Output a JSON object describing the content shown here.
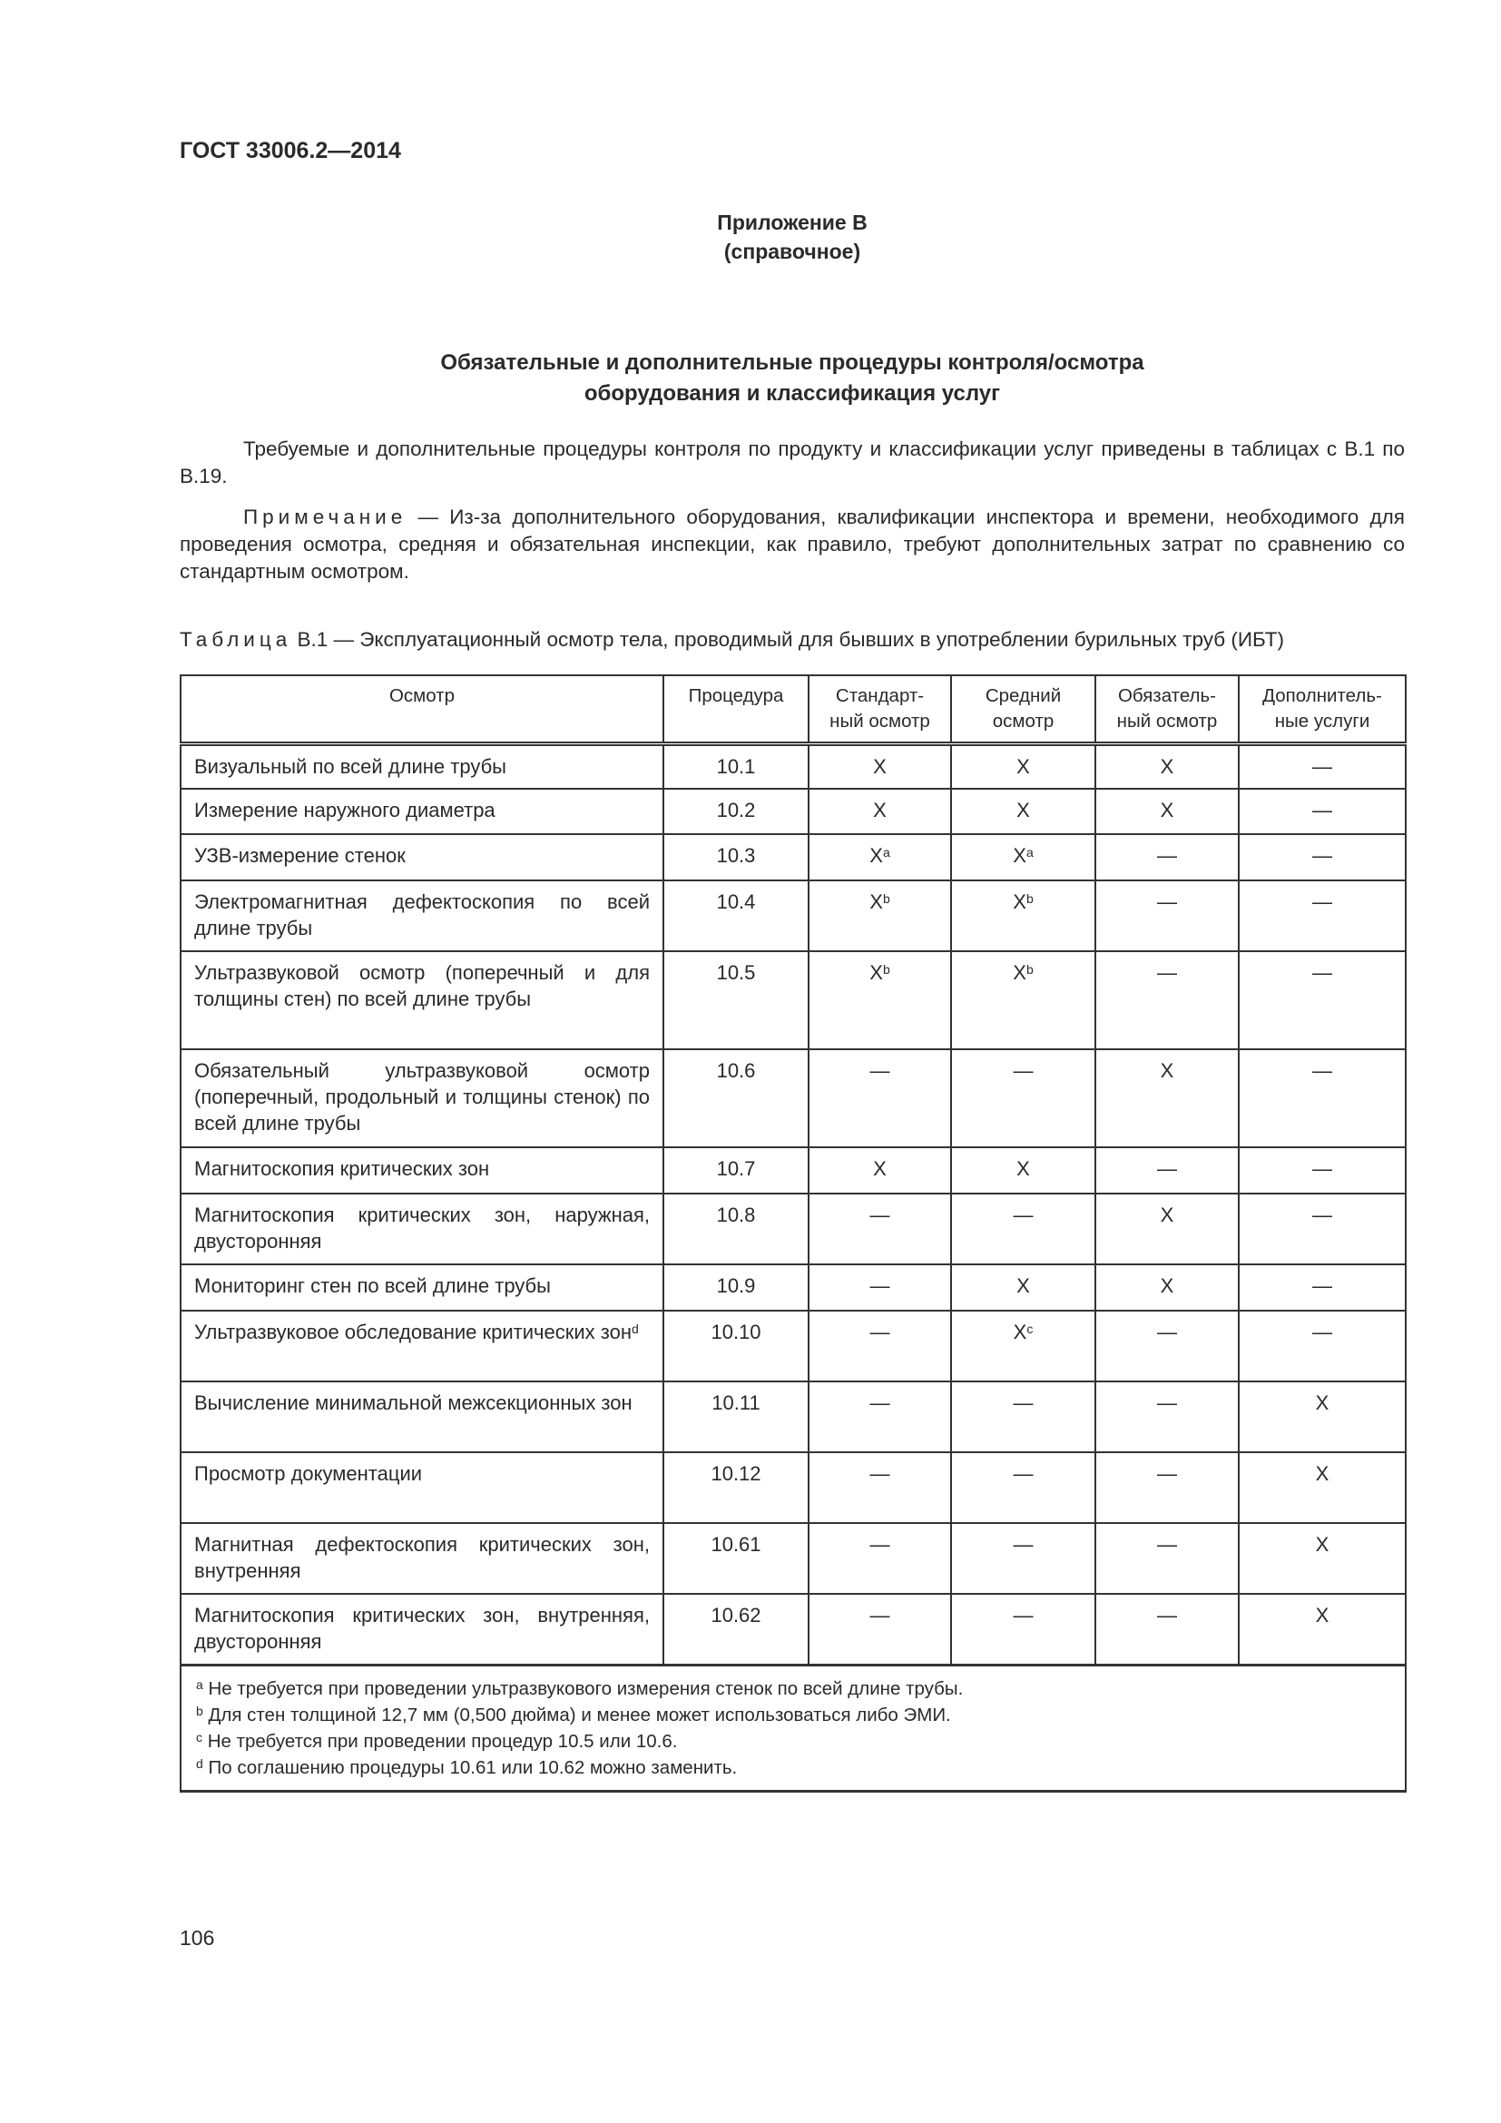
{
  "header": {
    "doc_id": "ГОСТ 33006.2—2014"
  },
  "annex": {
    "label": "Приложение В",
    "type": "(справочное)"
  },
  "title": {
    "line1": "Обязательные и дополнительные процедуры контроля/осмотра",
    "line2": "оборудования и классификация услуг"
  },
  "intro": "Требуемые и дополнительные процедуры контроля по продукту и классификации услуг приведены в таблицах с В.1 по В.19.",
  "note": {
    "label": "Примечание",
    "text": " — Из-за дополнительного оборудования, квалификации инспектора и времени, необходимого для проведения осмотра, средняя и обязательная инспекции, как правило, требуют дополнительных затрат по сравнению со стандартным осмотром."
  },
  "table": {
    "caption_label": "Таблица",
    "caption_text": " В.1 — Эксплуатационный осмотр тела, проводимый для бывших в употреблении бурильных труб (ИБТ)",
    "headers": [
      "Осмотр",
      "Процедура",
      "Стандарт-ный осмотр",
      "Средний осмотр",
      "Обязатель-ный осмотр",
      "Дополнитель-ные услуги"
    ],
    "rows": [
      {
        "name": "Визуальный по всей длине трубы",
        "proc": "10.1",
        "cells": [
          "X",
          "X",
          "X",
          "—"
        ]
      },
      {
        "name": "Измерение наружного диаметра",
        "proc": "10.2",
        "cells": [
          "X",
          "X",
          "X",
          "—"
        ]
      },
      {
        "name": "УЗВ-измерение стенок",
        "proc": "10.3",
        "cells": [
          "X|a",
          "X|a",
          "—",
          "—"
        ]
      },
      {
        "name": "Электромагнитная дефектоскопия по всей длине трубы",
        "proc": "10.4",
        "cells": [
          "X|b",
          "X|b",
          "—",
          "—"
        ]
      },
      {
        "name": "Ультразвуковой осмотр (поперечный и для толщины стен) по всей длине трубы",
        "proc": "10.5",
        "cells": [
          "X|b",
          "X|b",
          "—",
          "—"
        ]
      },
      {
        "name": "Обязательный ультразвуковой осмотр (поперечный, продольный и толщины стенок) по всей длине трубы",
        "proc": "10.6",
        "cells": [
          "—",
          "—",
          "X",
          "—"
        ]
      },
      {
        "name": "Магнитоскопия критических зон",
        "proc": "10.7",
        "cells": [
          "X",
          "X",
          "—",
          "—"
        ]
      },
      {
        "name": "Магнитоскопия критических зон, наружная, двусторонняя",
        "proc": "10.8",
        "cells": [
          "—",
          "—",
          "X",
          "—"
        ]
      },
      {
        "name": "Мониторинг стен по всей длине трубы",
        "proc": "10.9",
        "cells": [
          "—",
          "X",
          "X",
          "—"
        ]
      },
      {
        "name": "Ультразвуковое обследование критических зон|d",
        "proc": "10.10",
        "cells": [
          "—",
          "X|c",
          "—",
          "—"
        ]
      },
      {
        "name": "Вычисление минимальной межсекционных зон",
        "proc": "10.11",
        "cells": [
          "—",
          "—",
          "—",
          "X"
        ]
      },
      {
        "name": "Просмотр документации",
        "proc": "10.12",
        "cells": [
          "—",
          "—",
          "—",
          "X"
        ]
      },
      {
        "name": "Магнитная дефектоскопия критических зон, внутренняя",
        "proc": "10.61",
        "cells": [
          "—",
          "—",
          "—",
          "X"
        ]
      },
      {
        "name": "Магнитоскопия критических зон, внутренняя, двусторонняя",
        "proc": "10.62",
        "cells": [
          "—",
          "—",
          "—",
          "X"
        ]
      }
    ],
    "footnotes": [
      {
        "mark": "a",
        "text": " Не требуется при проведении ультразвукового измерения стенок по всей длине трубы."
      },
      {
        "mark": "b",
        "text": " Для стен толщиной 12,7 мм (0,500 дюйма) и менее может использоваться либо ЭМИ."
      },
      {
        "mark": "c",
        "text": " Не требуется при проведении процедур 10.5 или 10.6."
      },
      {
        "mark": "d",
        "text": " По соглашению процедуры 10.61 или 10.62 можно заменить."
      }
    ]
  },
  "footer": {
    "page_number": "106"
  }
}
